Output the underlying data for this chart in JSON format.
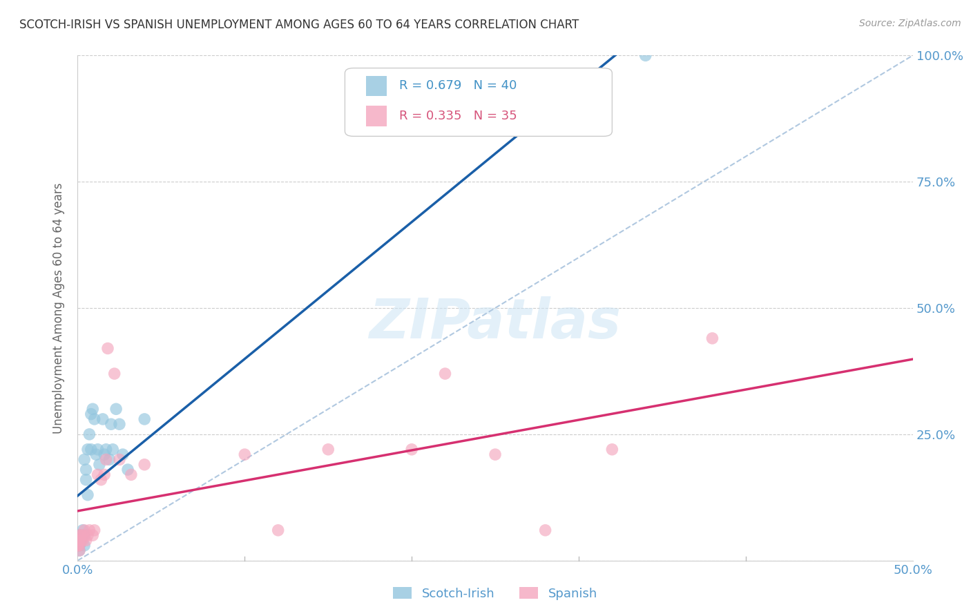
{
  "title": "SCOTCH-IRISH VS SPANISH UNEMPLOYMENT AMONG AGES 60 TO 64 YEARS CORRELATION CHART",
  "source": "Source: ZipAtlas.com",
  "ylabel": "Unemployment Among Ages 60 to 64 years",
  "xlim": [
    0.0,
    0.5
  ],
  "ylim": [
    0.0,
    1.0
  ],
  "scotch_irish_color": "#92c5de",
  "spanish_color": "#f4a6be",
  "scotch_irish_R": 0.679,
  "scotch_irish_N": 40,
  "spanish_R": 0.335,
  "spanish_N": 35,
  "legend_color_blue": "#4292c6",
  "legend_color_pink": "#d6547b",
  "watermark": "ZIPatlas",
  "scotch_irish_x": [
    0.0,
    0.0,
    0.0,
    0.001,
    0.001,
    0.001,
    0.001,
    0.001,
    0.001,
    0.001,
    0.002,
    0.002,
    0.003,
    0.004,
    0.004,
    0.004,
    0.005,
    0.005,
    0.006,
    0.006,
    0.007,
    0.008,
    0.008,
    0.009,
    0.01,
    0.011,
    0.012,
    0.013,
    0.015,
    0.016,
    0.017,
    0.019,
    0.02,
    0.021,
    0.023,
    0.025,
    0.027,
    0.03,
    0.04,
    0.34
  ],
  "scotch_irish_y": [
    0.03,
    0.04,
    0.03,
    0.02,
    0.03,
    0.04,
    0.05,
    0.03,
    0.04,
    0.05,
    0.04,
    0.05,
    0.06,
    0.03,
    0.05,
    0.2,
    0.16,
    0.18,
    0.13,
    0.22,
    0.25,
    0.22,
    0.29,
    0.3,
    0.28,
    0.21,
    0.22,
    0.19,
    0.28,
    0.21,
    0.22,
    0.2,
    0.27,
    0.22,
    0.3,
    0.27,
    0.21,
    0.18,
    0.28,
    1.0
  ],
  "spanish_x": [
    0.0,
    0.0,
    0.0,
    0.001,
    0.001,
    0.001,
    0.001,
    0.002,
    0.002,
    0.003,
    0.003,
    0.004,
    0.005,
    0.006,
    0.007,
    0.009,
    0.01,
    0.012,
    0.014,
    0.016,
    0.017,
    0.018,
    0.022,
    0.025,
    0.032,
    0.04,
    0.1,
    0.12,
    0.15,
    0.2,
    0.22,
    0.25,
    0.28,
    0.32,
    0.38
  ],
  "spanish_y": [
    0.03,
    0.04,
    0.03,
    0.02,
    0.03,
    0.04,
    0.05,
    0.04,
    0.05,
    0.04,
    0.05,
    0.06,
    0.04,
    0.05,
    0.06,
    0.05,
    0.06,
    0.17,
    0.16,
    0.17,
    0.2,
    0.42,
    0.37,
    0.2,
    0.17,
    0.19,
    0.21,
    0.06,
    0.22,
    0.22,
    0.37,
    0.21,
    0.06,
    0.22,
    0.44
  ],
  "bg_color": "#ffffff",
  "grid_color": "#cccccc",
  "title_color": "#333333",
  "axis_label_color": "#5599cc",
  "line_blue": "#1a5fa8",
  "line_pink": "#d63070",
  "diag_color": "#b0c8e0"
}
